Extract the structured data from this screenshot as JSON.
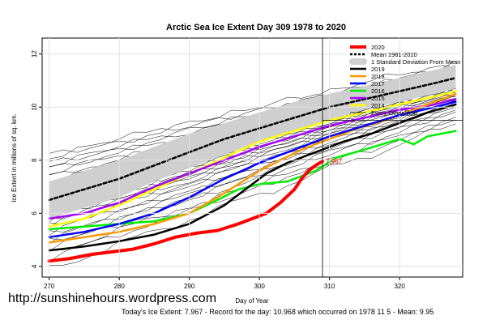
{
  "chart_data": {
    "type": "line",
    "title": "Arctic Sea Ice Extent Day 309 1978 to 2020",
    "xlabel": "Day of Year",
    "ylabel": "Ice Extent in millions of sq. km.",
    "xlim": [
      269,
      329
    ],
    "ylim": [
      3.6,
      12.6
    ],
    "x_ticks": [
      270,
      280,
      290,
      300,
      310,
      320
    ],
    "y_ticks": [
      4,
      6,
      8,
      10,
      12
    ],
    "current_day": 309,
    "current_label": "7.967",
    "legend": [
      {
        "name": "2020",
        "color": "#ff0000",
        "style": "thick"
      },
      {
        "name": "Mean 1981-2010",
        "color": "#000000",
        "style": "dashed"
      },
      {
        "name": "1 Standard Deviation From Mean",
        "color": "#d0d0d0",
        "style": "band"
      },
      {
        "name": "2019",
        "color": "#000000",
        "style": "solid"
      },
      {
        "name": "2018",
        "color": "#ff9900",
        "style": "solid"
      },
      {
        "name": "2017",
        "color": "#0000ff",
        "style": "solid"
      },
      {
        "name": "2016",
        "color": "#00ee00",
        "style": "solid"
      },
      {
        "name": "2015",
        "color": "#aa00ff",
        "style": "solid"
      },
      {
        "name": "2014",
        "color": "#ffff00",
        "style": "solid"
      },
      {
        "name": "Every Other Year",
        "color": "#000000",
        "style": "thin"
      }
    ],
    "series": [
      {
        "name": "2020",
        "color": "#ff0000",
        "width": 4,
        "x": [
          270,
          273,
          276,
          279,
          282,
          285,
          288,
          291,
          294,
          297,
          299,
          301,
          303,
          305,
          306,
          307,
          308,
          309
        ],
        "y": [
          4.2,
          4.3,
          4.45,
          4.55,
          4.65,
          4.85,
          5.1,
          5.25,
          5.35,
          5.6,
          5.8,
          6.0,
          6.4,
          6.9,
          7.3,
          7.6,
          7.8,
          7.967
        ]
      },
      {
        "name": "2019",
        "color": "#000000",
        "width": 2.5,
        "x": [
          270,
          275,
          280,
          285,
          290,
          295,
          298,
          301,
          304,
          308,
          312,
          316,
          320,
          324,
          328
        ],
        "y": [
          4.6,
          4.75,
          4.95,
          5.2,
          5.6,
          6.3,
          6.9,
          7.5,
          7.9,
          8.3,
          8.7,
          9.0,
          9.4,
          9.8,
          10.1
        ]
      },
      {
        "name": "2018",
        "color": "#ff9900",
        "width": 2.5,
        "x": [
          270,
          275,
          280,
          285,
          290,
          294,
          297,
          300,
          303,
          306,
          310,
          314,
          318,
          322,
          326,
          328
        ],
        "y": [
          4.9,
          5.1,
          5.3,
          5.6,
          6.0,
          6.6,
          7.1,
          7.6,
          8.0,
          8.4,
          8.8,
          9.2,
          9.5,
          9.9,
          10.3,
          10.5
        ]
      },
      {
        "name": "2017",
        "color": "#0000ff",
        "width": 2.5,
        "x": [
          270,
          275,
          280,
          285,
          290,
          295,
          300,
          305,
          310,
          315,
          320,
          325,
          328
        ],
        "y": [
          5.1,
          5.3,
          5.6,
          6.0,
          6.6,
          7.3,
          7.9,
          8.4,
          8.9,
          9.3,
          9.7,
          10.0,
          10.2
        ]
      },
      {
        "name": "2016",
        "color": "#00ee00",
        "width": 2.5,
        "x": [
          270,
          275,
          280,
          285,
          290,
          294,
          297,
          300,
          304,
          308,
          311,
          315,
          320,
          322,
          324,
          326,
          328
        ],
        "y": [
          5.4,
          5.5,
          5.6,
          5.7,
          6.0,
          6.5,
          6.9,
          7.1,
          7.2,
          7.6,
          8.1,
          8.4,
          8.8,
          8.6,
          8.9,
          9.0,
          9.1
        ]
      },
      {
        "name": "2015",
        "color": "#aa00ff",
        "width": 2.5,
        "x": [
          270,
          275,
          280,
          285,
          290,
          295,
          300,
          305,
          310,
          315,
          320,
          325,
          328
        ],
        "y": [
          5.8,
          6.0,
          6.4,
          7.0,
          7.5,
          8.0,
          8.5,
          8.9,
          9.3,
          9.6,
          9.9,
          10.1,
          10.3
        ]
      },
      {
        "name": "2014",
        "color": "#ffff00",
        "width": 2.5,
        "x": [
          270,
          275,
          280,
          285,
          290,
          295,
          300,
          305,
          310,
          315,
          320,
          325,
          328
        ],
        "y": [
          5.5,
          5.8,
          6.3,
          6.9,
          7.5,
          8.1,
          8.7,
          9.1,
          9.5,
          9.8,
          10.1,
          10.4,
          10.6
        ]
      },
      {
        "name": "Mean 1981-2010",
        "color": "#000000",
        "width": 2.5,
        "dash": "4,3",
        "x": [
          270,
          275,
          280,
          285,
          290,
          295,
          300,
          305,
          310,
          315,
          320,
          325,
          328
        ],
        "y": [
          6.5,
          6.9,
          7.3,
          7.8,
          8.3,
          8.8,
          9.2,
          9.6,
          10.0,
          10.3,
          10.6,
          10.9,
          11.1
        ]
      }
    ],
    "std_band": {
      "x": [
        270,
        275,
        280,
        285,
        290,
        295,
        300,
        305,
        310,
        315,
        320,
        325,
        328
      ],
      "lower": [
        5.8,
        6.2,
        6.6,
        7.2,
        7.7,
        8.2,
        8.7,
        9.1,
        9.5,
        9.9,
        10.2,
        10.5,
        10.7
      ],
      "upper": [
        7.2,
        7.6,
        8.0,
        8.5,
        9.0,
        9.4,
        9.8,
        10.2,
        10.5,
        10.8,
        11.1,
        11.4,
        11.6
      ]
    },
    "background_years": [
      {
        "start": 8.2,
        "slope": 0.058
      },
      {
        "start": 8.1,
        "slope": 0.062
      },
      {
        "start": 7.9,
        "slope": 0.06
      },
      {
        "start": 7.8,
        "slope": 0.064
      },
      {
        "start": 7.7,
        "slope": 0.058
      },
      {
        "start": 7.5,
        "slope": 0.066
      },
      {
        "start": 7.4,
        "slope": 0.061
      },
      {
        "start": 7.2,
        "slope": 0.068
      },
      {
        "start": 7.1,
        "slope": 0.063
      },
      {
        "start": 7.0,
        "slope": 0.07
      },
      {
        "start": 6.9,
        "slope": 0.066
      },
      {
        "start": 6.8,
        "slope": 0.072
      },
      {
        "start": 6.7,
        "slope": 0.068
      },
      {
        "start": 6.6,
        "slope": 0.074
      },
      {
        "start": 6.5,
        "slope": 0.07
      },
      {
        "start": 6.4,
        "slope": 0.076
      },
      {
        "start": 6.3,
        "slope": 0.072
      },
      {
        "start": 6.2,
        "slope": 0.078
      },
      {
        "start": 6.1,
        "slope": 0.074
      },
      {
        "start": 6.0,
        "slope": 0.08
      },
      {
        "start": 5.9,
        "slope": 0.076
      },
      {
        "start": 5.8,
        "slope": 0.082
      },
      {
        "start": 5.7,
        "slope": 0.078
      },
      {
        "start": 5.6,
        "slope": 0.084
      },
      {
        "start": 5.5,
        "slope": 0.08
      },
      {
        "start": 5.3,
        "slope": 0.086
      },
      {
        "start": 5.2,
        "slope": 0.082
      },
      {
        "start": 5.0,
        "slope": 0.088
      },
      {
        "start": 4.9,
        "slope": 0.084
      },
      {
        "start": 4.7,
        "slope": 0.09
      },
      {
        "start": 4.5,
        "slope": 0.086
      },
      {
        "start": 4.3,
        "slope": 0.092
      },
      {
        "start": 3.9,
        "slope": 0.094
      }
    ]
  },
  "watermark": "http://sunshinehours.wordpress.com",
  "footer": "Today's Ice Extent: 7.967  - Record for the day: 10.968 which occurred on 1978 11 5  - Mean: 9.95"
}
